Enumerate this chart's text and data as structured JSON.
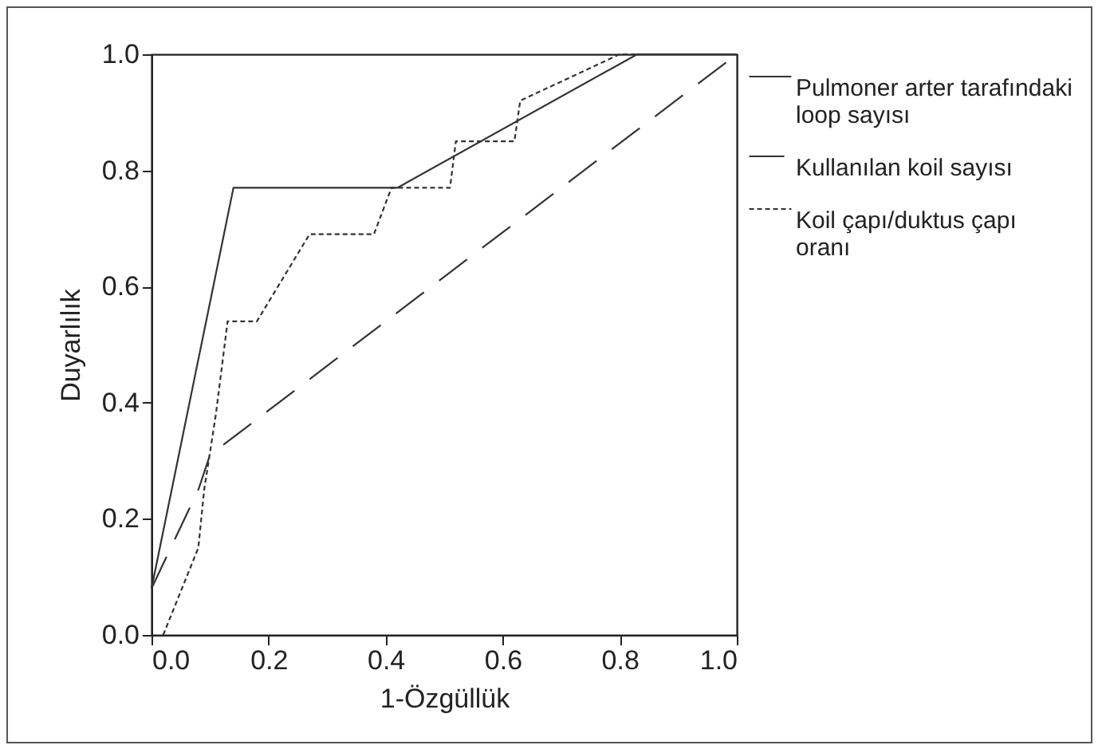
{
  "chart_data": {
    "type": "line",
    "xlabel": "1-Özgüllük",
    "ylabel": "Duyarlılık",
    "xlim": [
      0,
      1
    ],
    "ylim": [
      0,
      1
    ],
    "xticks": [
      {
        "value": 0,
        "label": "0.0"
      },
      {
        "value": 0.2,
        "label": "0.2"
      },
      {
        "value": 0.4,
        "label": "0.4"
      },
      {
        "value": 0.6,
        "label": "0.6"
      },
      {
        "value": 0.8,
        "label": "0.8"
      },
      {
        "value": 1,
        "label": "1.0"
      }
    ],
    "yticks": [
      {
        "value": 0,
        "label": "0.0"
      },
      {
        "value": 0.2,
        "label": "0.2"
      },
      {
        "value": 0.4,
        "label": "0.4"
      },
      {
        "value": 0.6,
        "label": "0.6"
      },
      {
        "value": 0.8,
        "label": "0.8"
      },
      {
        "value": 1,
        "label": "1.0"
      }
    ],
    "grid": false,
    "legend": "right",
    "marker": "none",
    "series": [
      {
        "name": "Pulmoner arter tarafındaki loop sayısı",
        "color": "#333333",
        "line_style": "solid",
        "x": [
          0,
          0.14,
          0.42,
          0.83,
          1
        ],
        "values": [
          0.08,
          0.77,
          0.77,
          1,
          1
        ]
      },
      {
        "name": "Kullanılan koil sayısı",
        "color": "#333333",
        "line_style": "dashed",
        "x": [
          0,
          0.08,
          0.1,
          1
        ],
        "values": [
          0.08,
          0.25,
          0.31,
          1
        ]
      },
      {
        "name": "Koil çapı/duktus çapı oranı",
        "color": "#333333",
        "line_style": "dotted",
        "x": [
          0.02,
          0.08,
          0.09,
          0.11,
          0.13,
          0.18,
          0.27,
          0.38,
          0.41,
          0.51,
          0.52,
          0.62,
          0.63,
          0.8,
          1
        ],
        "values": [
          0,
          0.15,
          0.25,
          0.38,
          0.54,
          0.54,
          0.69,
          0.69,
          0.77,
          0.77,
          0.85,
          0.85,
          0.92,
          1,
          1
        ]
      }
    ]
  }
}
